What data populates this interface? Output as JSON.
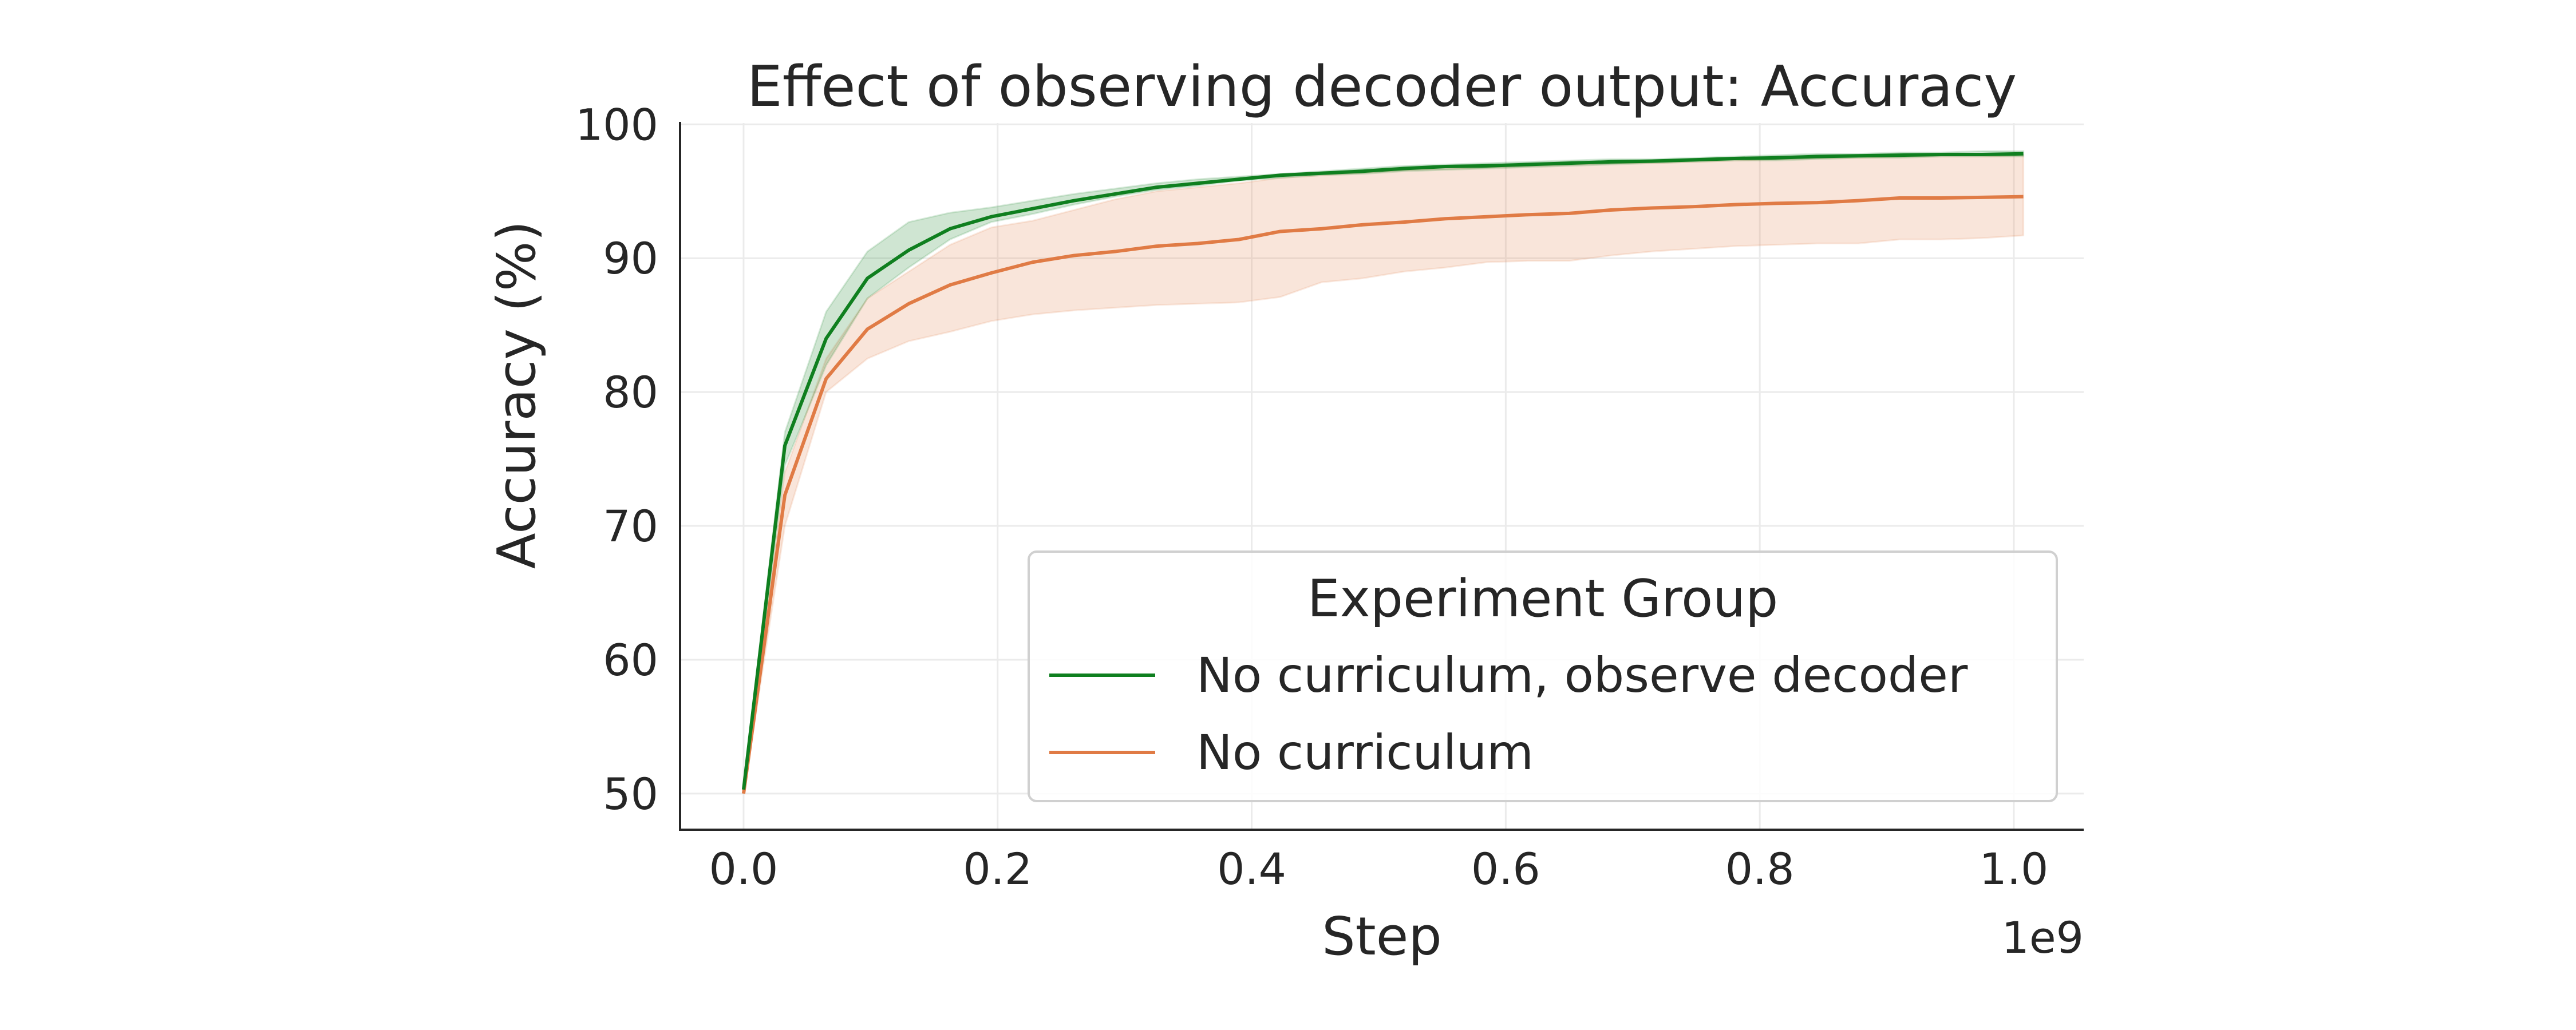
{
  "chart_data": {
    "type": "line",
    "title": "Effect of observing decoder output: Accuracy",
    "xlabel": "Step",
    "ylabel": "Accuracy (%)",
    "x_offset_label": "1e9",
    "xlim": [
      -0.05,
      1.055
    ],
    "ylim": [
      47.3,
      100.1
    ],
    "xticks": [
      0.0,
      0.2,
      0.4,
      0.6,
      0.8,
      1.0
    ],
    "xtick_labels": [
      "0.0",
      "0.2",
      "0.4",
      "0.6",
      "0.8",
      "1.0"
    ],
    "yticks": [
      50,
      60,
      70,
      80,
      90,
      100
    ],
    "ytick_labels": [
      "50",
      "60",
      "70",
      "80",
      "90",
      "100"
    ],
    "grid": true,
    "legend": {
      "title": "Experiment Group",
      "placement": "lower-right"
    },
    "x": [
      0,
      0.0325,
      0.065,
      0.0975,
      0.13,
      0.1625,
      0.195,
      0.2275,
      0.26,
      0.2925,
      0.325,
      0.3575,
      0.39,
      0.4225,
      0.455,
      0.4875,
      0.52,
      0.5525,
      0.585,
      0.6175,
      0.65,
      0.6825,
      0.715,
      0.7475,
      0.78,
      0.8125,
      0.845,
      0.8775,
      0.91,
      0.9425,
      0.975,
      1.0075
    ],
    "series": [
      {
        "name": "No curriculum, observe decoder",
        "color": "#0f7f1f",
        "values": [
          50.3,
          76,
          84,
          88.5,
          90.6,
          92.2,
          93.1,
          93.7,
          94.3,
          94.8,
          95.3,
          95.6,
          95.9,
          96.2,
          96.35,
          96.5,
          96.7,
          96.85,
          96.9,
          97.0,
          97.1,
          97.2,
          97.25,
          97.35,
          97.45,
          97.5,
          97.6,
          97.65,
          97.7,
          97.75,
          97.75,
          97.8
        ],
        "lower": [
          50,
          74.5,
          82,
          87,
          89.3,
          91.4,
          92.7,
          93.3,
          94,
          94.6,
          95.1,
          95.4,
          95.8,
          96.0,
          96.2,
          96.3,
          96.5,
          96.6,
          96.7,
          96.8,
          96.9,
          97.0,
          97.1,
          97.2,
          97.3,
          97.3,
          97.4,
          97.5,
          97.5,
          97.6,
          97.6,
          97.6
        ],
        "upper": [
          50.7,
          77,
          86,
          90.5,
          92.7,
          93.4,
          93.8,
          94.3,
          94.8,
          95.2,
          95.6,
          95.9,
          96.1,
          96.3,
          96.5,
          96.7,
          96.9,
          97.0,
          97.1,
          97.2,
          97.3,
          97.4,
          97.4,
          97.5,
          97.6,
          97.7,
          97.8,
          97.8,
          97.9,
          97.9,
          98.0,
          98.0
        ]
      },
      {
        "name": "No curriculum",
        "color": "#e07b45",
        "values": [
          50,
          72.3,
          81,
          84.7,
          86.6,
          88,
          88.9,
          89.7,
          90.2,
          90.5,
          90.9,
          91.1,
          91.4,
          92.0,
          92.2,
          92.5,
          92.7,
          92.95,
          93.1,
          93.25,
          93.35,
          93.6,
          93.75,
          93.85,
          94.0,
          94.1,
          94.15,
          94.3,
          94.5,
          94.5,
          94.55,
          94.6
        ],
        "lower": [
          50,
          70,
          80,
          82.5,
          83.8,
          84.5,
          85.3,
          85.8,
          86.1,
          86.3,
          86.5,
          86.6,
          86.7,
          87.1,
          88.2,
          88.5,
          89.0,
          89.3,
          89.7,
          89.8,
          89.8,
          90.2,
          90.5,
          90.7,
          90.9,
          91.0,
          91.1,
          91.1,
          91.4,
          91.4,
          91.5,
          91.7
        ],
        "upper": [
          50.5,
          74,
          82.5,
          87,
          89,
          91,
          92.3,
          92.8,
          93.6,
          94.4,
          95,
          95.3,
          95.6,
          96,
          96.2,
          96.4,
          96.6,
          96.7,
          96.8,
          96.9,
          97.0,
          97.1,
          97.1,
          97.2,
          97.3,
          97.4,
          97.5,
          97.5,
          97.6,
          97.6,
          97.6,
          97.7
        ]
      }
    ]
  }
}
